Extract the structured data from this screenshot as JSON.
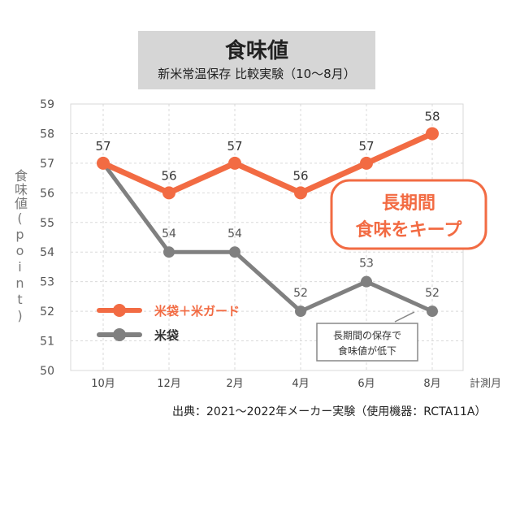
{
  "header": {
    "title": "食味値",
    "subtitle": "新米常温保存 比較実験（10～8月）"
  },
  "footer": {
    "source": "出典：2021～2022年メーカー実験（使用機器：RCTA11A）"
  },
  "callout": {
    "line1": "長期間",
    "line2": "食味をキープ"
  },
  "note": {
    "line1": "長期間の保存で",
    "line2": "食味値が低下"
  },
  "colors": {
    "orange": "#f26b43",
    "gray": "#808080",
    "grid": "#d9d9d9"
  },
  "chart_data": {
    "type": "line",
    "title": "食味値",
    "subtitle": "新米常温保存 比較実験（10～8月）",
    "ylabel": "食味値(point)",
    "xlabel": "計測月",
    "categories": [
      "10月",
      "12月",
      "2月",
      "4月",
      "6月",
      "8月"
    ],
    "ylim": [
      50,
      59
    ],
    "yticks": [
      50,
      51,
      52,
      53,
      54,
      55,
      56,
      57,
      58,
      59
    ],
    "grid": true,
    "legend": "bottom-left",
    "series": [
      {
        "name": "米袋＋米ガード",
        "color": "#f26b43",
        "values": [
          57,
          56,
          57,
          56,
          57,
          58
        ]
      },
      {
        "name": "米袋",
        "color": "#808080",
        "values": [
          57,
          54,
          54,
          52,
          53,
          52
        ]
      }
    ]
  }
}
